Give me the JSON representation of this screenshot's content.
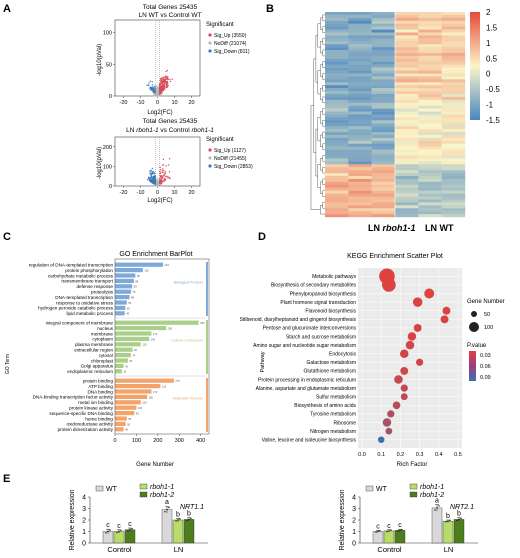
{
  "panels": {
    "A": {
      "letter": "A",
      "top": {
        "title1": "Total Genes 25435",
        "title2": "LN WT vs Control WT",
        "xlabel": "Log2(FC)",
        "ylabel": "-log10(pVal)",
        "xticks": [
          "-20",
          "-10",
          "0",
          "10",
          "20"
        ],
        "yticks": [
          "0",
          "50",
          "100"
        ],
        "legend_title": "Significant",
        "legend": [
          "Sig_Up (3550)",
          "NoDiff (21074)",
          "Sig_Down (811)"
        ]
      },
      "bottom": {
        "title1": "Total Genes 25435",
        "title2_a": "LN ",
        "title2_b": "rboh1-1",
        "title2_c": " vs Control ",
        "title2_d": "rboh1-1",
        "xlabel": "Log2(FC)",
        "ylabel": "-log10(pVal)",
        "xticks": [
          "-20",
          "-10",
          "0",
          "10",
          "20"
        ],
        "yticks": [
          "0",
          "100",
          "200"
        ],
        "legend_title": "Significant",
        "legend": [
          "Sig_Up (1127)",
          "NoDiff (21455)",
          "Sig_Down (2853)"
        ]
      }
    },
    "B": {
      "letter": "B",
      "label_left_a": "LN ",
      "label_left_b": "rboh1-1",
      "label_right": "LN WT",
      "colorbar_ticks": [
        "2",
        "1.5",
        "1",
        "0.5",
        "0",
        "-0.5",
        "-1",
        "-1.5"
      ]
    },
    "C": {
      "letter": "C",
      "title": "GO Enrichment BarPlot",
      "ylabel": "GO Term",
      "xlabel": "Gene Number",
      "xticks": [
        "0",
        "100",
        "200",
        "300",
        "400"
      ],
      "groups": [
        {
          "name": "Biological Process",
          "color": "#7fa9d8",
          "terms": [
            "regulation of DNA-templated transcription",
            "protein phosphorylation",
            "carbohydrate metabolic process",
            "transmembrane transport",
            "defense response",
            "proteolysis",
            "DNA-templated transcription",
            "response to oxidative stress",
            "hydrogen peroxide catabolic process",
            "lipid metabolic process"
          ],
          "values": [
            224,
            130,
            95,
            88,
            80,
            75,
            68,
            55,
            48,
            45
          ]
        },
        {
          "name": "Cellular Component",
          "color": "#a9cf8a",
          "terms": [
            "integral component of membrane",
            "nucleus",
            "membrane",
            "cytoplasm",
            "plasma membrane",
            "extracellular region",
            "cytosol",
            "chloroplast",
            "Golgi apparatus",
            "endoplasmic reticulum"
          ],
          "values": [
            390,
            238,
            170,
            160,
            120,
            82,
            74,
            60,
            40,
            32
          ]
        },
        {
          "name": "Molecular Function",
          "color": "#f2a46a",
          "terms": [
            "protein binding",
            "ATP binding",
            "DNA binding",
            "DNA-binding transcription factor activity",
            "metal ion binding",
            "protein kinase activity",
            "sequence-specific DNA binding",
            "heme binding",
            "oxidoreductase activity",
            "protein dimerization activity"
          ],
          "values": [
            275,
            212,
            170,
            150,
            120,
            100,
            90,
            55,
            50,
            40
          ]
        }
      ]
    },
    "D": {
      "letter": "D",
      "title": "KEGG Enrichment Scatter Plot",
      "ylabel": "Pathway",
      "xlabel": "Rich Factor",
      "xticks": [
        "0.0",
        "0.1",
        "0.2",
        "0.3",
        "0.4",
        "0.5"
      ],
      "size_legend_title": "Gene Number",
      "size_legend": [
        "50",
        "100"
      ],
      "color_legend_title": "P.value",
      "color_legend": [
        "0.03",
        "0.06",
        "0.09"
      ]
    },
    "E": {
      "letter": "E",
      "ylabel": "Relative expression",
      "legend_wt": "WT",
      "legend_r1": "rboh1-1",
      "legend_r2": "rboh1-2",
      "left": {
        "gene": "NRT1.1",
        "yticks": [
          "0",
          "1",
          "2",
          "3",
          "4"
        ],
        "groups": [
          "Control",
          "LN"
        ],
        "letters": [
          [
            "c",
            "c",
            "c"
          ],
          [
            "a",
            "b",
            "b"
          ]
        ]
      },
      "right": {
        "gene": "NRT2.1",
        "yticks": [
          "0",
          "1",
          "2",
          "3",
          "4"
        ],
        "groups": [
          "Control",
          "LN"
        ],
        "letters": [
          [
            "c",
            "c",
            "c"
          ],
          [
            "a",
            "b",
            "b"
          ]
        ]
      }
    }
  },
  "chart_data": [
    {
      "type": "bar",
      "title": "GO Enrichment BarPlot",
      "xlabel": "Gene Number",
      "ylabel": "GO Term",
      "xlim": [
        0,
        420
      ]
    },
    {
      "type": "scatter",
      "title": "KEGG Enrichment Scatter Plot",
      "xlabel": "Rich Factor",
      "ylabel": "Pathway",
      "xlim": [
        0,
        0.5
      ],
      "categories": [
        "Metabolic pathways",
        "Biosynthesis of secondary metabolites",
        "Phenylpropanoid biosynthesis",
        "Plant hormone signal transduction",
        "Flavonoid biosynthesis",
        "Stilbenoid, diarylheptanoid and gingerol biosynthesis",
        "Pentose and glucuronate interconversions",
        "Starch and sucrose metabolism",
        "Amino sugar and nucleotide sugar metabolism",
        "Endocytosis",
        "Galactose metabolism",
        "Glutathione metabolism",
        "Protein processing in endoplasmic reticulum",
        "Alanine, aspartate and glutamate metabolism",
        "Sulfur metabolism",
        "Biosynthesis of amino acids",
        "Tyrosine metabolism",
        "Ribosome",
        "Nitrogen metabolism",
        "Valine, leucine and isoleucine biosynthesis"
      ],
      "rich_factor": [
        0.13,
        0.14,
        0.35,
        0.29,
        0.44,
        0.43,
        0.29,
        0.26,
        0.25,
        0.22,
        0.3,
        0.22,
        0.19,
        0.22,
        0.22,
        0.18,
        0.15,
        0.13,
        0.14,
        0.1
      ],
      "gene_number": [
        130,
        95,
        40,
        35,
        20,
        20,
        20,
        25,
        25,
        25,
        15,
        20,
        25,
        15,
        12,
        18,
        15,
        25,
        12,
        10
      ],
      "p_value": [
        0.002,
        0.002,
        0.001,
        0.004,
        0.002,
        0.003,
        0.006,
        0.006,
        0.007,
        0.008,
        0.01,
        0.012,
        0.014,
        0.018,
        0.02,
        0.025,
        0.028,
        0.032,
        0.036,
        0.09
      ]
    },
    {
      "type": "bar",
      "ylabel": "Relative expression",
      "ylim": [
        0,
        4
      ],
      "categories": [
        "Control",
        "LN"
      ],
      "panel": "NRT1.1",
      "series": [
        {
          "name": "WT",
          "values": [
            1.0,
            2.9
          ],
          "errors": [
            0.2,
            0.3
          ]
        },
        {
          "name": "rboh1-1",
          "values": [
            1.0,
            2.0
          ],
          "errors": [
            0.15,
            0.15
          ]
        },
        {
          "name": "rboh1-2",
          "values": [
            1.15,
            2.05
          ],
          "errors": [
            0.15,
            0.15
          ]
        }
      ]
    },
    {
      "type": "bar",
      "ylabel": "Relative expression",
      "ylim": [
        0,
        4
      ],
      "categories": [
        "Control",
        "LN"
      ],
      "panel": "NRT2.1",
      "series": [
        {
          "name": "WT",
          "values": [
            1.0,
            3.05
          ],
          "errors": [
            0.1,
            0.3
          ]
        },
        {
          "name": "rboh1-1",
          "values": [
            1.05,
            1.9
          ],
          "errors": [
            0.1,
            0.1
          ]
        },
        {
          "name": "rboh1-2",
          "values": [
            1.1,
            2.05
          ],
          "errors": [
            0.1,
            0.15
          ]
        }
      ]
    }
  ]
}
